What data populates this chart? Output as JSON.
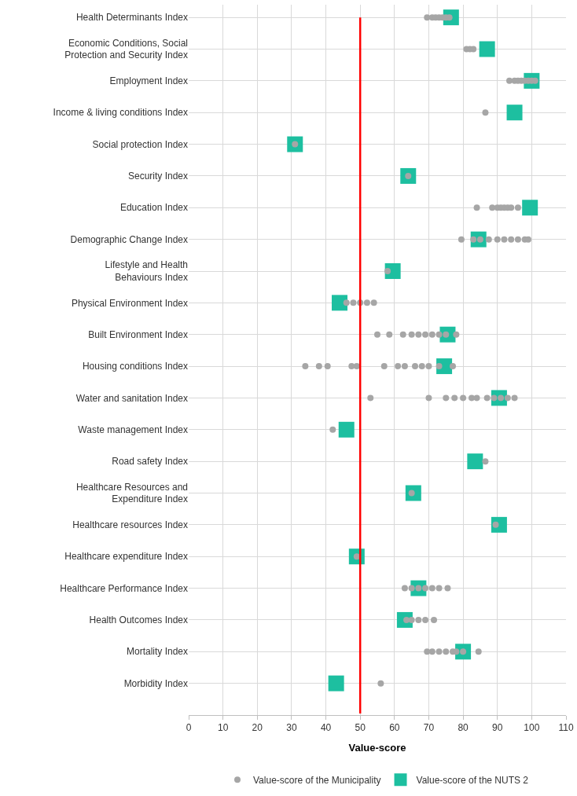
{
  "chart_data": {
    "type": "scatter",
    "orientation": "horizontal",
    "xlabel": "Value-score",
    "categories": [
      "Health Determinants Index",
      "Economic Conditions, Social Protection and Security Index",
      "Employment Index",
      "Income & living conditions Index",
      "Social protection Index",
      "Security Index",
      "Education Index",
      "Demographic Change Index",
      "Lifestyle and Health Behaviours Index",
      "Physical Environment Index",
      "Built Environment Index",
      "Housing conditions Index",
      "Water and sanitation Index",
      "Waste management Index",
      "Road safety Index",
      "Healthcare Resources and Expenditure Index",
      "Healthcare resources Index",
      "Healthcare expenditure Index",
      "Healthcare Performance Index",
      "Health Outcomes Index",
      "Mortality Index",
      "Morbidity Index"
    ],
    "series": [
      {
        "name": "Value-score of the Municipality",
        "color": "#a6a6a6",
        "marker": "circle",
        "x": [
          "Health Determinants Index",
          "Health Determinants Index",
          "Health Determinants Index",
          "Health Determinants Index",
          "Health Determinants Index",
          "Health Determinants Index",
          "Health Determinants Index",
          "Economic Conditions, Social Protection and Security Index",
          "Economic Conditions, Social Protection and Security Index",
          "Economic Conditions, Social Protection and Security Index",
          "Employment Index",
          "Employment Index",
          "Employment Index",
          "Employment Index",
          "Employment Index",
          "Employment Index",
          "Employment Index",
          "Employment Index",
          "Income & living conditions Index",
          "Social protection Index",
          "Security Index",
          "Education Index",
          "Education Index",
          "Education Index",
          "Education Index",
          "Education Index",
          "Education Index",
          "Education Index",
          "Education Index",
          "Demographic Change Index",
          "Demographic Change Index",
          "Demographic Change Index",
          "Demographic Change Index",
          "Demographic Change Index",
          "Demographic Change Index",
          "Demographic Change Index",
          "Demographic Change Index",
          "Demographic Change Index",
          "Demographic Change Index",
          "Lifestyle and Health Behaviours Index",
          "Physical Environment Index",
          "Physical Environment Index",
          "Physical Environment Index",
          "Physical Environment Index",
          "Physical Environment Index",
          "Built Environment Index",
          "Built Environment Index",
          "Built Environment Index",
          "Built Environment Index",
          "Built Environment Index",
          "Built Environment Index",
          "Built Environment Index",
          "Built Environment Index",
          "Built Environment Index",
          "Built Environment Index",
          "Housing conditions Index",
          "Housing conditions Index",
          "Housing conditions Index",
          "Housing conditions Index",
          "Housing conditions Index",
          "Housing conditions Index",
          "Housing conditions Index",
          "Housing conditions Index",
          "Housing conditions Index",
          "Housing conditions Index",
          "Housing conditions Index",
          "Housing conditions Index",
          "Housing conditions Index",
          "Water and sanitation Index",
          "Water and sanitation Index",
          "Water and sanitation Index",
          "Water and sanitation Index",
          "Water and sanitation Index",
          "Water and sanitation Index",
          "Water and sanitation Index",
          "Water and sanitation Index",
          "Water and sanitation Index",
          "Water and sanitation Index",
          "Water and sanitation Index",
          "Water and sanitation Index",
          "Waste management Index",
          "Road safety Index",
          "Healthcare Resources and Expenditure Index",
          "Healthcare resources Index",
          "Healthcare expenditure Index",
          "Healthcare Performance Index",
          "Healthcare Performance Index",
          "Healthcare Performance Index",
          "Healthcare Performance Index",
          "Healthcare Performance Index",
          "Healthcare Performance Index",
          "Healthcare Performance Index",
          "Health Outcomes Index",
          "Health Outcomes Index",
          "Health Outcomes Index",
          "Health Outcomes Index",
          "Health Outcomes Index",
          "Mortality Index",
          "Mortality Index",
          "Mortality Index",
          "Mortality Index",
          "Mortality Index",
          "Mortality Index",
          "Mortality Index",
          "Mortality Index",
          "Morbidity Index"
        ],
        "values": [
          69.5,
          71,
          72,
          73,
          74,
          75,
          76,
          81,
          82,
          83,
          93.5,
          95,
          96,
          97,
          98,
          99,
          100,
          101,
          86.5,
          31,
          64,
          84,
          88.5,
          90,
          91,
          92,
          93,
          94,
          96,
          79.5,
          83,
          85,
          87.5,
          90,
          92,
          94,
          96,
          98,
          99,
          58,
          46,
          48,
          50,
          52,
          54,
          55,
          58.5,
          62.5,
          65,
          67,
          69,
          71,
          73,
          75,
          78,
          34,
          38,
          40.5,
          47.5,
          49,
          57,
          61,
          63,
          66,
          68,
          70,
          73,
          77,
          53,
          70,
          75,
          77.5,
          80,
          82.5,
          84,
          87,
          89,
          91,
          93,
          95,
          42,
          86.5,
          65,
          89.5,
          49,
          63,
          65,
          67,
          69,
          71,
          73,
          75.5,
          63.5,
          65,
          67,
          69,
          71.5,
          69.5,
          71,
          73,
          75,
          77,
          78,
          80,
          84.5,
          56
        ]
      },
      {
        "name": "Value-score of the NUTS 2",
        "color": "#1dbfa0",
        "marker": "square",
        "x": [
          "Health Determinants Index",
          "Economic Conditions, Social Protection and Security Index",
          "Employment Index",
          "Income & living conditions Index",
          "Social protection Index",
          "Security Index",
          "Education Index",
          "Demographic Change Index",
          "Lifestyle and Health Behaviours Index",
          "Physical Environment Index",
          "Built Environment Index",
          "Housing conditions Index",
          "Water and sanitation Index",
          "Waste management Index",
          "Road safety Index",
          "Healthcare Resources and Expenditure Index",
          "Healthcare resources Index",
          "Healthcare expenditure Index",
          "Healthcare Performance Index",
          "Health Outcomes Index",
          "Mortality Index",
          "Morbidity Index"
        ],
        "values": [
          76.5,
          87,
          100,
          95,
          31,
          64,
          99.5,
          84.5,
          59.5,
          44,
          75.5,
          74.5,
          90.5,
          46,
          83.5,
          65.5,
          90.5,
          49,
          67,
          63,
          80,
          43
        ]
      }
    ],
    "xlim": [
      0,
      110
    ],
    "xticks": [
      0,
      10,
      20,
      30,
      40,
      50,
      60,
      70,
      80,
      90,
      100,
      110
    ],
    "ref_lines": [
      {
        "axis": "x",
        "value": 50,
        "color": "#ff0000",
        "line_style": "solid"
      }
    ],
    "grid": true,
    "legend": "bottom"
  }
}
